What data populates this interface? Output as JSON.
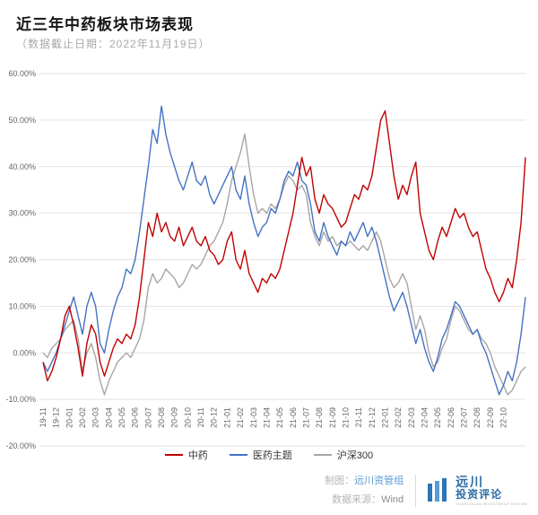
{
  "header": {
    "title": "近三年中药板块市场表现",
    "subtitle": "（数据截止日期：2022年11月19日）"
  },
  "chart_data": {
    "type": "line",
    "title": "近三年中药板块市场表现",
    "xlabel": "",
    "ylabel": "",
    "unit": "percent",
    "ylim": [
      -20,
      60
    ],
    "grid": "horizontal",
    "legend_position": "bottom",
    "points_per_label": 3,
    "yticks": [
      {
        "label": "60.00%",
        "value": 60
      },
      {
        "label": "50.00%",
        "value": 50
      },
      {
        "label": "40.00%",
        "value": 40
      },
      {
        "label": "30.00%",
        "value": 30
      },
      {
        "label": "20.00%",
        "value": 20
      },
      {
        "label": "10.00%",
        "value": 10
      },
      {
        "label": "0.00%",
        "value": 0
      },
      {
        "label": "-10.00%",
        "value": -10
      },
      {
        "label": "-20.00%",
        "value": -20
      }
    ],
    "x_labels": [
      "19-11",
      "19-12",
      "20-01",
      "20-02",
      "20-03",
      "20-04",
      "20-05",
      "20-06",
      "20-07",
      "20-08",
      "20-09",
      "20-10",
      "20-11",
      "20-12",
      "21-01",
      "21-02",
      "21-03",
      "21-04",
      "21-05",
      "21-06",
      "21-07",
      "21-08",
      "21-09",
      "21-10",
      "21-11",
      "21-12",
      "22-01",
      "22-02",
      "22-03",
      "22-04",
      "22-05",
      "22-06",
      "22-07",
      "22-08",
      "22-09",
      "22-10"
    ],
    "series": [
      {
        "name": "中药",
        "color": "#c00000",
        "values": [
          -2,
          -6,
          -4,
          -1,
          3,
          8,
          10,
          6,
          1,
          -5,
          2,
          6,
          4,
          -2,
          -5,
          -2,
          1,
          3,
          2,
          4,
          3,
          6,
          12,
          20,
          28,
          25,
          30,
          26,
          28,
          25,
          24,
          27,
          23,
          25,
          27,
          24,
          23,
          25,
          22,
          21,
          19,
          20,
          24,
          26,
          20,
          18,
          22,
          17,
          15,
          13,
          16,
          15,
          17,
          16,
          18,
          22,
          26,
          30,
          36,
          42,
          38,
          40,
          33,
          30,
          34,
          32,
          31,
          29,
          27,
          28,
          31,
          34,
          33,
          36,
          35,
          38,
          44,
          50,
          52,
          45,
          38,
          33,
          36,
          34,
          38,
          41,
          30,
          26,
          22,
          20,
          24,
          27,
          25,
          28,
          31,
          29,
          30,
          27,
          25,
          26,
          22,
          18,
          16,
          13,
          11,
          13,
          16,
          14,
          20,
          28,
          42
        ]
      },
      {
        "name": "医药主题",
        "color": "#4472c4",
        "values": [
          -2,
          -4,
          -2,
          0,
          3,
          6,
          9,
          12,
          8,
          4,
          10,
          13,
          10,
          2,
          0,
          5,
          9,
          12,
          14,
          18,
          17,
          20,
          26,
          33,
          40,
          48,
          45,
          53,
          47,
          43,
          40,
          37,
          35,
          38,
          41,
          37,
          36,
          38,
          34,
          32,
          34,
          36,
          38,
          40,
          35,
          33,
          38,
          32,
          28,
          25,
          27,
          28,
          31,
          30,
          33,
          37,
          39,
          38,
          41,
          37,
          36,
          32,
          26,
          24,
          28,
          25,
          23,
          21,
          24,
          23,
          26,
          24,
          26,
          28,
          25,
          27,
          24,
          20,
          16,
          12,
          9,
          11,
          13,
          10,
          6,
          2,
          5,
          1,
          -2,
          -4,
          -1,
          3,
          5,
          8,
          11,
          10,
          8,
          6,
          4,
          5,
          2,
          0,
          -3,
          -6,
          -9,
          -7,
          -4,
          -6,
          -2,
          4,
          12
        ]
      },
      {
        "name": "沪深300",
        "color": "#a6a6a6",
        "values": [
          0,
          -1,
          1,
          2,
          3,
          5,
          6,
          7,
          3,
          -4,
          0,
          2,
          -1,
          -6,
          -9,
          -6,
          -4,
          -2,
          -1,
          0,
          -1,
          1,
          3,
          7,
          14,
          17,
          15,
          16,
          18,
          17,
          16,
          14,
          15,
          17,
          19,
          18,
          19,
          21,
          23,
          24,
          26,
          28,
          32,
          37,
          40,
          43,
          47,
          40,
          34,
          30,
          31,
          30,
          32,
          31,
          33,
          36,
          38,
          37,
          35,
          36,
          34,
          28,
          25,
          23,
          26,
          24,
          25,
          23,
          24,
          23,
          24,
          23,
          22,
          23,
          22,
          24,
          26,
          24,
          20,
          16,
          14,
          15,
          17,
          15,
          10,
          5,
          8,
          5,
          0,
          -3,
          -2,
          1,
          3,
          7,
          10,
          9,
          7,
          5,
          4,
          5,
          3,
          2,
          0,
          -3,
          -5,
          -7,
          -9,
          -8,
          -6,
          -4,
          -3
        ]
      }
    ]
  },
  "legend": {
    "items": [
      {
        "label": "中药"
      },
      {
        "label": "医药主题"
      },
      {
        "label": "沪深300"
      }
    ]
  },
  "footer": {
    "credit_label": "制图：",
    "credit_value": "远川资管组",
    "source_label": "数据来源：",
    "source_value": "Wind",
    "logo": {
      "line1": "远川",
      "line2": "投资评论",
      "caption": "YUANCHUAN INVESTMENT REVIEW"
    }
  }
}
